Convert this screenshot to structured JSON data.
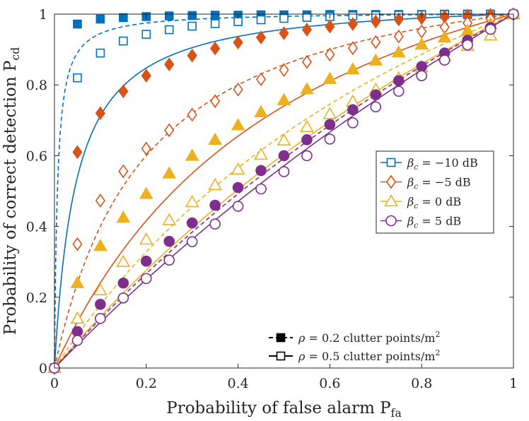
{
  "chart_data": {
    "type": "line",
    "xlabel": "Probability of false alarm",
    "xlabel_sub": "fa",
    "ylabel": "Probability of correct detection",
    "ylabel_sub": "cd",
    "xlim": [
      0,
      1
    ],
    "ylim": [
      0,
      1
    ],
    "x_ticks": [
      "0",
      "0.2",
      "0.4",
      "0.6",
      "0.8",
      "1"
    ],
    "y_ticks": [
      "0",
      "0.2",
      "0.4",
      "0.6",
      "0.8",
      "1"
    ],
    "grid": false,
    "marker_x": [
      0,
      0.05,
      0.1,
      0.15,
      0.2,
      0.25,
      0.3,
      0.35,
      0.4,
      0.45,
      0.5,
      0.55,
      0.6,
      0.65,
      0.7,
      0.75,
      0.8,
      0.85,
      0.9,
      0.95,
      1
    ],
    "series": [
      {
        "beta": "−10 dB",
        "rho": "0.2",
        "color": "#0072BD",
        "marker": "square",
        "filled": true,
        "dashed": true,
        "k": 0.0065,
        "values": [
          0,
          0.972,
          0.986,
          0.99,
          0.993,
          0.995,
          0.996,
          0.997,
          0.997,
          0.998,
          0.998,
          0.998,
          0.999,
          0.999,
          0.999,
          0.999,
          0.999,
          1.0,
          1.0,
          1.0,
          1.0
        ]
      },
      {
        "beta": "−10 dB",
        "rho": "0.5",
        "color": "#0072BD",
        "marker": "square",
        "filled": false,
        "dashed": false,
        "k": 0.047,
        "values": [
          0,
          0.82,
          0.89,
          0.924,
          0.943,
          0.956,
          0.966,
          0.973,
          0.979,
          0.984,
          0.988,
          0.991,
          0.993,
          0.995,
          0.996,
          0.997,
          0.998,
          0.999,
          0.999,
          1.0,
          1.0
        ]
      },
      {
        "beta": "−5 dB",
        "rho": "0.2",
        "color": "#D95319",
        "marker": "diamond",
        "filled": true,
        "dashed": true,
        "k": 0.2,
        "values": [
          0,
          0.61,
          0.72,
          0.782,
          0.826,
          0.858,
          0.883,
          0.903,
          0.92,
          0.934,
          0.946,
          0.956,
          0.965,
          0.972,
          0.979,
          0.985,
          0.989,
          0.993,
          0.996,
          0.998,
          1.0
        ]
      },
      {
        "beta": "−5 dB",
        "rho": "0.5",
        "color": "#D95319",
        "marker": "diamond",
        "filled": false,
        "dashed": false,
        "k": 0.54,
        "values": [
          0,
          0.35,
          0.473,
          0.556,
          0.62,
          0.672,
          0.716,
          0.754,
          0.787,
          0.816,
          0.842,
          0.865,
          0.886,
          0.904,
          0.921,
          0.937,
          0.951,
          0.963,
          0.975,
          0.986,
          1.0
        ]
      },
      {
        "beta": "0 dB",
        "rho": "0.2",
        "color": "#EDB120",
        "marker": "triangle",
        "filled": true,
        "dashed": true,
        "k": 1.05,
        "values": [
          0,
          0.24,
          0.345,
          0.425,
          0.492,
          0.55,
          0.6,
          0.645,
          0.686,
          0.723,
          0.757,
          0.788,
          0.817,
          0.844,
          0.869,
          0.892,
          0.914,
          0.934,
          0.953,
          0.972,
          1.0
        ]
      },
      {
        "beta": "0 dB",
        "rho": "0.5",
        "color": "#EDB120",
        "marker": "triangle",
        "filled": false,
        "dashed": false,
        "k": 1.9,
        "values": [
          0,
          0.14,
          0.22,
          0.3,
          0.363,
          0.418,
          0.469,
          0.517,
          0.561,
          0.603,
          0.643,
          0.681,
          0.718,
          0.753,
          0.787,
          0.819,
          0.85,
          0.881,
          0.91,
          0.94,
          1.0
        ]
      },
      {
        "beta": "5 dB",
        "rho": "0.2",
        "color": "#7E2F8E",
        "marker": "circle",
        "filled": true,
        "dashed": true,
        "k": 2.2,
        "values": [
          0,
          0.103,
          0.18,
          0.24,
          0.302,
          0.358,
          0.41,
          0.46,
          0.51,
          0.558,
          0.6,
          0.645,
          0.688,
          0.73,
          0.772,
          0.812,
          0.852,
          0.89,
          0.926,
          0.962,
          1.0
        ]
      },
      {
        "beta": "5 dB",
        "rho": "0.5",
        "color": "#7E2F8E",
        "marker": "circle",
        "filled": false,
        "dashed": false,
        "k": 3.0,
        "values": [
          0,
          0.078,
          0.14,
          0.198,
          0.253,
          0.305,
          0.357,
          0.407,
          0.457,
          0.506,
          0.555,
          0.6,
          0.647,
          0.693,
          0.738,
          0.782,
          0.826,
          0.87,
          0.913,
          0.957,
          1.0
        ]
      }
    ],
    "legend_beta": {
      "placement": "center-right",
      "symbol": "β",
      "subscript": "c",
      "entries": [
        {
          "value": "−10 dB",
          "color": "#0072BD",
          "marker": "square"
        },
        {
          "value": "−5 dB",
          "color": "#D95319",
          "marker": "diamond"
        },
        {
          "value": "0 dB",
          "color": "#EDB120",
          "marker": "triangle"
        },
        {
          "value": "5 dB",
          "color": "#7E2F8E",
          "marker": "circle"
        }
      ]
    },
    "legend_rho": {
      "placement": "bottom-right",
      "symbol": "ρ",
      "units": "clutter points/m",
      "units_sup": "2",
      "entries": [
        {
          "value": "0.2",
          "filled": true,
          "dashed": true
        },
        {
          "value": "0.5",
          "filled": false,
          "dashed": false
        }
      ]
    }
  }
}
